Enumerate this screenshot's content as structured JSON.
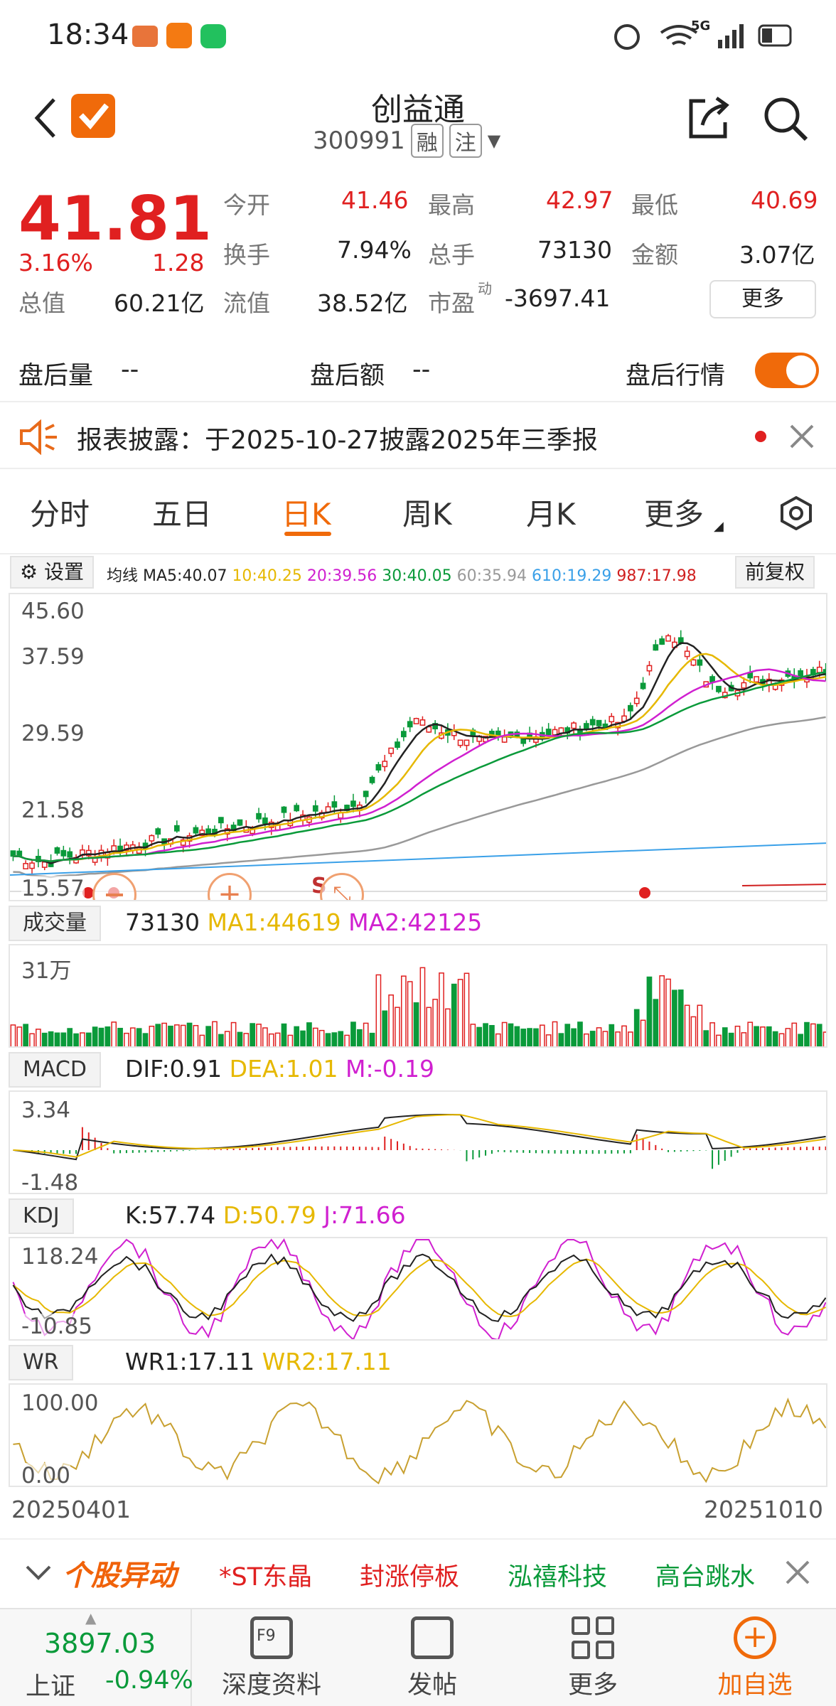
{
  "status": {
    "time": "18:34",
    "network": "5G"
  },
  "header": {
    "title": "创益通",
    "code": "300991",
    "tag1": "融",
    "tag2": "注"
  },
  "quote": {
    "price": "41.81",
    "pct": "3.16%",
    "change": "1.28",
    "open_label": "今开",
    "open": "41.46",
    "high_label": "最高",
    "high": "42.97",
    "low_label": "最低",
    "low": "40.69",
    "turnover_label": "换手",
    "turnover": "7.94%",
    "volume_label": "总手",
    "volume": "73130",
    "amount_label": "金额",
    "amount": "3.07亿",
    "mktcap_label": "总值",
    "mktcap": "60.21亿",
    "float_label": "流值",
    "float": "38.52亿",
    "pe_label": "市盈",
    "pe_sup": "动",
    "pe": "-3697.41",
    "more": "更多"
  },
  "afterhours": {
    "vol_label": "盘后量",
    "vol": "--",
    "amt_label": "盘后额",
    "amt": "--",
    "toggle_label": "盘后行情"
  },
  "notice": {
    "text": "报表披露：于2025-10-27披露2025年三季报"
  },
  "tabs": [
    "分时",
    "五日",
    "日K",
    "周K",
    "月K",
    "更多"
  ],
  "active_tab": "日K",
  "ma": {
    "settings": "设置",
    "label": "均线",
    "ma5": "MA5:40.07",
    "ma10": "10:40.25",
    "ma20": "20:39.56",
    "ma30": "30:40.05",
    "ma60": "60:35.94",
    "ma610": "610:19.29",
    "ma987": "987:17.98",
    "adjust": "前复权",
    "colors": {
      "ma5": "#222222",
      "ma10": "#e6b800",
      "ma20": "#d020d0",
      "ma30": "#0a9a3a",
      "ma60": "#999999",
      "ma610": "#3aa0e8",
      "ma987": "#d02020"
    }
  },
  "kline_axis": [
    "45.60",
    "37.59",
    "29.59",
    "21.58",
    "15.57"
  ],
  "volume": {
    "label": "成交量",
    "value": "73130",
    "ma1": "MA1:44619",
    "ma2": "MA2:42125",
    "axis": "31万"
  },
  "macd": {
    "label": "MACD",
    "dif": "DIF:0.91",
    "dea": "DEA:1.01",
    "m": "M:-0.19",
    "axis_top": "3.34",
    "axis_bottom": "-1.48"
  },
  "kdj": {
    "label": "KDJ",
    "k": "K:57.74",
    "d": "D:50.79",
    "j": "J:71.66",
    "axis_top": "118.24",
    "axis_bottom": "-10.85"
  },
  "wr": {
    "label": "WR",
    "wr1": "WR1:17.11",
    "wr2": "WR2:17.11",
    "axis_top": "100.00",
    "axis_bottom": "0.00"
  },
  "dates": {
    "start": "20250401",
    "end": "20251010"
  },
  "ticker_strip": {
    "title": "个股异动",
    "items": [
      "*ST东晶",
      "封涨停板",
      "泓禧科技",
      "高台跳水"
    ]
  },
  "bottom": {
    "index_value": "3897.03",
    "index_name": "上证",
    "index_pct": "-0.94%",
    "f9": "F9",
    "btn1": "深度资料",
    "btn2": "发帖",
    "btn3": "更多",
    "btn4": "加自选"
  }
}
